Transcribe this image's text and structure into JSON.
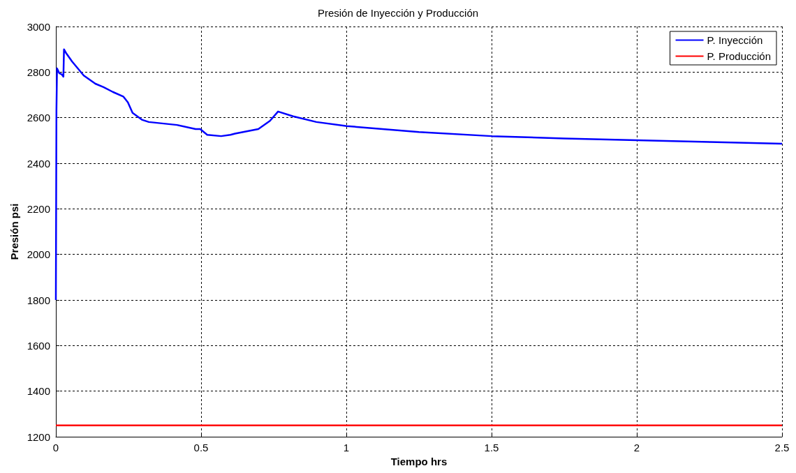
{
  "chart_data": {
    "type": "line",
    "title": "Presión de Inyección y Producción",
    "xlabel": "Tiempo hrs",
    "ylabel": "Presión psi",
    "xlim": [
      0,
      2.5
    ],
    "xticks": [
      0,
      0.5,
      1,
      1.5,
      2,
      2.5
    ],
    "ylim": [
      1200,
      3000
    ],
    "yticks": [
      1200,
      1400,
      1600,
      1800,
      2000,
      2200,
      2400,
      2600,
      2800,
      3000
    ],
    "grid": true,
    "legend": "top right",
    "marker": "none",
    "line_style": "solid",
    "series": [
      {
        "name": "P. Inyección",
        "color": "#0000ff",
        "x": [
          0,
          0.002,
          0.004,
          0.012,
          0.02,
          0.026,
          0.028,
          0.036,
          0.056,
          0.096,
          0.136,
          0.164,
          0.196,
          0.232,
          0.248,
          0.264,
          0.296,
          0.32,
          0.417,
          0.481,
          0.497,
          0.521,
          0.569,
          0.601,
          0.617,
          0.697,
          0.737,
          0.765,
          0.817,
          0.897,
          1.002,
          1.25,
          1.5,
          1.75,
          2,
          2.25,
          2.5
        ],
        "values": [
          1800,
          2630,
          2816,
          2795,
          2790,
          2780,
          2900,
          2882,
          2846,
          2785,
          2749,
          2734,
          2713,
          2693,
          2667,
          2621,
          2591,
          2581,
          2568,
          2550,
          2550,
          2525,
          2519,
          2525,
          2530,
          2550,
          2586,
          2627,
          2606,
          2581,
          2563,
          2537,
          2519,
          2509,
          2501,
          2493,
          2486
        ]
      },
      {
        "name": "P. Producción",
        "color": "#ff0000",
        "x": [
          0,
          2.5
        ],
        "values": [
          1250,
          1250
        ]
      }
    ]
  }
}
